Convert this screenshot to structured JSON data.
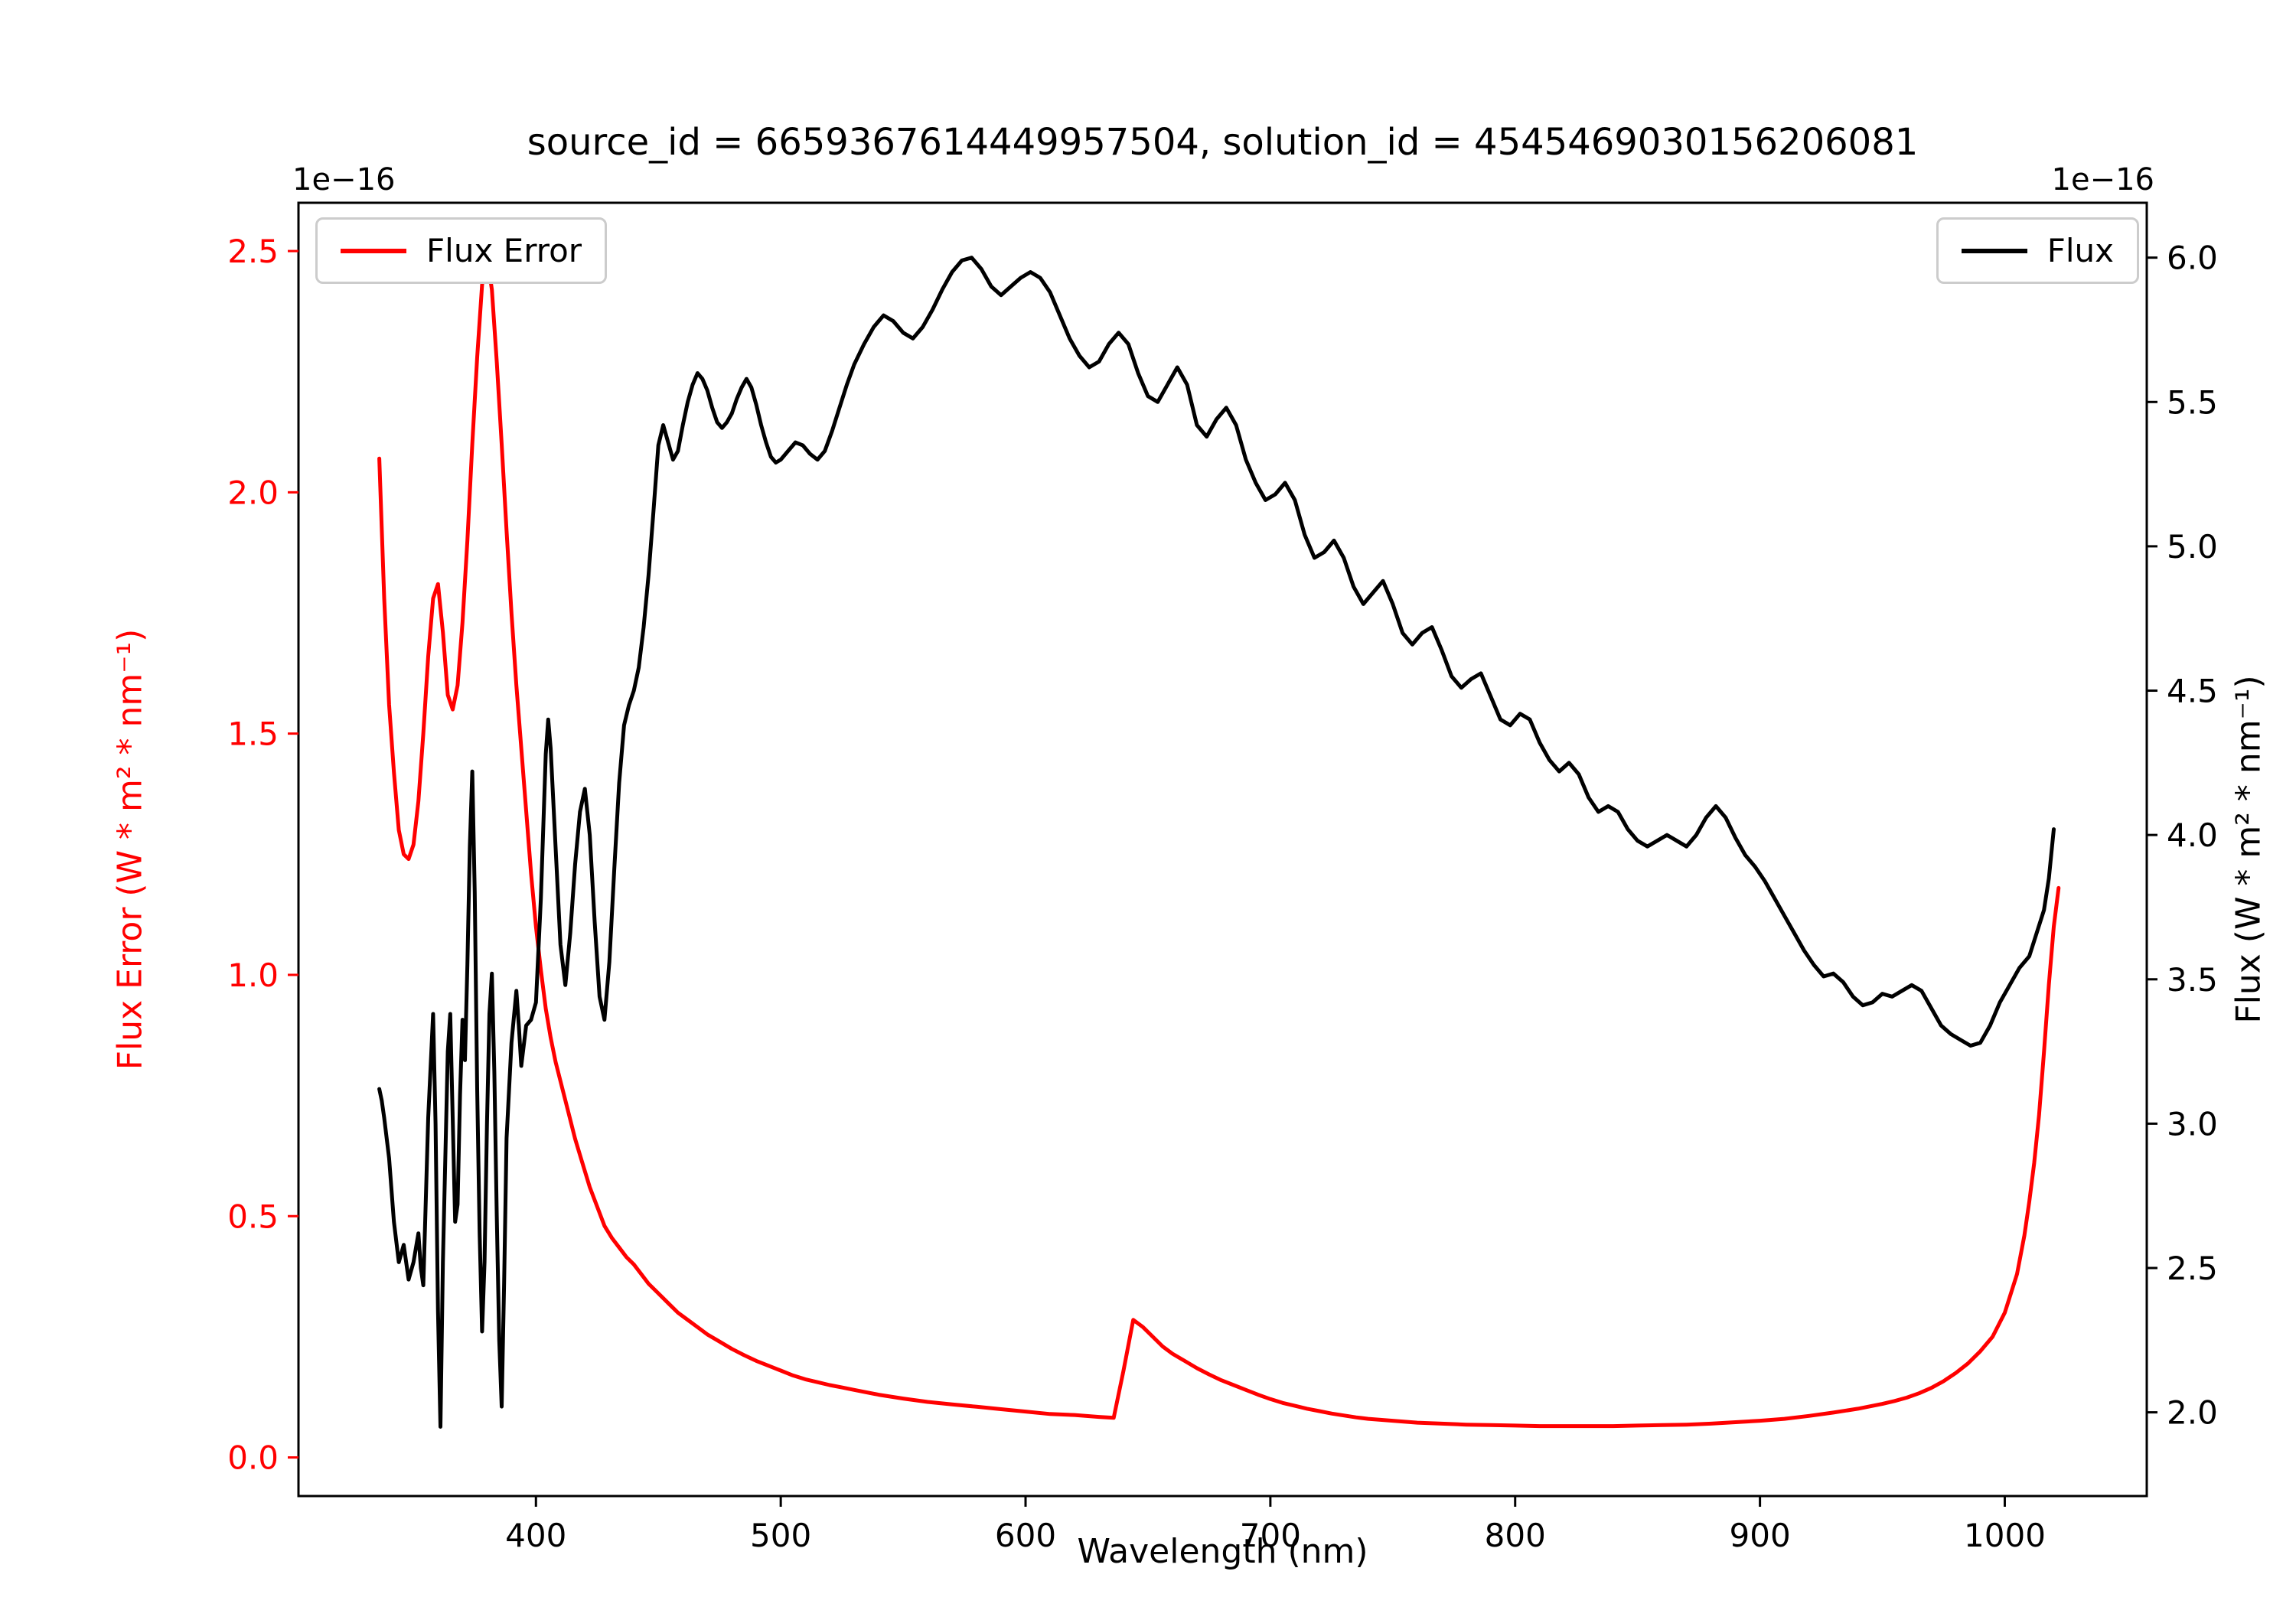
{
  "figure": {
    "background": "#ffffff"
  },
  "chart_data": {
    "type": "line",
    "title": "source_id = 6659367614449957504, solution_id = 4545469030156206081",
    "xlabel": "Wavelength (nm)",
    "grid": false,
    "x_axis": {
      "lim": [
        303,
        1058
      ],
      "ticks": [
        {
          "v": 400,
          "label": "400"
        },
        {
          "v": 500,
          "label": "500"
        },
        {
          "v": 600,
          "label": "600"
        },
        {
          "v": 700,
          "label": "700"
        },
        {
          "v": 800,
          "label": "800"
        },
        {
          "v": 900,
          "label": "900"
        },
        {
          "v": 1000,
          "label": "1000"
        }
      ]
    },
    "left_axis": {
      "label": "Flux Error (W * m² * nm⁻¹)",
      "offset_text": "1e−16",
      "color": "#ff0000",
      "lim": [
        -0.08,
        2.6
      ],
      "ticks": [
        {
          "v": 0.0,
          "label": "0.0"
        },
        {
          "v": 0.5,
          "label": "0.5"
        },
        {
          "v": 1.0,
          "label": "1.0"
        },
        {
          "v": 1.5,
          "label": "1.5"
        },
        {
          "v": 2.0,
          "label": "2.0"
        },
        {
          "v": 2.5,
          "label": "2.5"
        }
      ]
    },
    "right_axis": {
      "label": "Flux (W * m² * nm⁻¹)",
      "offset_text": "1e−16",
      "color": "#000000",
      "lim": [
        1.71,
        6.19
      ],
      "ticks": [
        {
          "v": 2.0,
          "label": "2.0"
        },
        {
          "v": 2.5,
          "label": "2.5"
        },
        {
          "v": 3.0,
          "label": "3.0"
        },
        {
          "v": 3.5,
          "label": "3.5"
        },
        {
          "v": 4.0,
          "label": "4.0"
        },
        {
          "v": 4.5,
          "label": "4.5"
        },
        {
          "v": 5.0,
          "label": "5.0"
        },
        {
          "v": 5.5,
          "label": "5.5"
        },
        {
          "v": 6.0,
          "label": "6.0"
        }
      ]
    },
    "legend_left": {
      "label": "Flux Error",
      "color": "#ff0000"
    },
    "legend_right": {
      "label": "Flux",
      "color": "#000000"
    },
    "series": [
      {
        "name": "Flux Error",
        "axis": "left",
        "color": "#ff0000",
        "x": [
          336,
          338,
          340,
          342,
          344,
          346,
          348,
          350,
          352,
          354,
          356,
          358,
          360,
          362,
          364,
          366,
          368,
          370,
          372,
          374,
          376,
          378,
          380,
          382,
          384,
          386,
          388,
          390,
          392,
          394,
          396,
          398,
          400,
          402,
          404,
          406,
          408,
          410,
          413,
          416,
          419,
          422,
          425,
          428,
          431,
          434,
          437,
          440,
          443,
          446,
          450,
          454,
          458,
          462,
          466,
          470,
          475,
          480,
          485,
          490,
          495,
          500,
          505,
          510,
          515,
          520,
          525,
          530,
          540,
          550,
          560,
          570,
          580,
          590,
          600,
          610,
          620,
          630,
          636,
          640,
          644,
          648,
          652,
          656,
          660,
          665,
          670,
          675,
          680,
          685,
          690,
          695,
          700,
          705,
          710,
          715,
          720,
          725,
          730,
          735,
          740,
          745,
          750,
          760,
          770,
          780,
          790,
          800,
          810,
          820,
          830,
          840,
          850,
          860,
          870,
          880,
          890,
          900,
          910,
          920,
          930,
          940,
          950,
          955,
          960,
          965,
          970,
          975,
          980,
          985,
          990,
          995,
          1000,
          1005,
          1008,
          1010,
          1012,
          1014,
          1016,
          1018,
          1020,
          1022
        ],
        "y": [
          2.07,
          1.78,
          1.56,
          1.42,
          1.3,
          1.25,
          1.24,
          1.27,
          1.36,
          1.5,
          1.66,
          1.78,
          1.81,
          1.71,
          1.58,
          1.55,
          1.6,
          1.73,
          1.9,
          2.1,
          2.28,
          2.43,
          2.49,
          2.42,
          2.27,
          2.1,
          1.92,
          1.75,
          1.6,
          1.47,
          1.34,
          1.21,
          1.1,
          1.01,
          0.93,
          0.87,
          0.82,
          0.78,
          0.72,
          0.66,
          0.61,
          0.56,
          0.52,
          0.48,
          0.455,
          0.435,
          0.415,
          0.4,
          0.38,
          0.36,
          0.34,
          0.32,
          0.3,
          0.285,
          0.27,
          0.255,
          0.24,
          0.225,
          0.212,
          0.2,
          0.19,
          0.18,
          0.17,
          0.162,
          0.156,
          0.15,
          0.145,
          0.14,
          0.13,
          0.122,
          0.115,
          0.11,
          0.105,
          0.1,
          0.095,
          0.09,
          0.088,
          0.084,
          0.082,
          0.18,
          0.285,
          0.27,
          0.25,
          0.23,
          0.215,
          0.2,
          0.185,
          0.172,
          0.16,
          0.15,
          0.14,
          0.13,
          0.121,
          0.113,
          0.107,
          0.101,
          0.096,
          0.091,
          0.087,
          0.083,
          0.08,
          0.078,
          0.076,
          0.072,
          0.07,
          0.068,
          0.067,
          0.066,
          0.065,
          0.065,
          0.065,
          0.065,
          0.066,
          0.067,
          0.068,
          0.07,
          0.073,
          0.076,
          0.08,
          0.086,
          0.093,
          0.101,
          0.111,
          0.117,
          0.124,
          0.133,
          0.144,
          0.158,
          0.175,
          0.195,
          0.22,
          0.25,
          0.3,
          0.38,
          0.46,
          0.53,
          0.61,
          0.71,
          0.84,
          0.98,
          1.1,
          1.18
        ]
      },
      {
        "name": "Flux",
        "axis": "right",
        "color": "#000000",
        "x": [
          336,
          337,
          338,
          340,
          342,
          344,
          346,
          348,
          350,
          352,
          353,
          354,
          356,
          358,
          359,
          360,
          361,
          362,
          364,
          365,
          366,
          367,
          368,
          369,
          370,
          371,
          372,
          373,
          374,
          375,
          376,
          377,
          378,
          379,
          380,
          381,
          382,
          383,
          384,
          385,
          386,
          387,
          388,
          390,
          392,
          393,
          394,
          396,
          398,
          400,
          402,
          404,
          405,
          406,
          408,
          410,
          412,
          414,
          416,
          418,
          420,
          422,
          424,
          426,
          428,
          430,
          432,
          434,
          436,
          438,
          440,
          442,
          444,
          446,
          448,
          450,
          452,
          454,
          456,
          458,
          460,
          462,
          464,
          466,
          468,
          470,
          472,
          474,
          476,
          478,
          480,
          482,
          484,
          486,
          488,
          490,
          492,
          494,
          496,
          498,
          500,
          503,
          506,
          509,
          512,
          515,
          518,
          521,
          524,
          527,
          530,
          534,
          538,
          542,
          546,
          550,
          554,
          558,
          562,
          566,
          570,
          574,
          578,
          582,
          586,
          590,
          594,
          598,
          602,
          606,
          610,
          614,
          618,
          622,
          626,
          630,
          634,
          638,
          642,
          646,
          650,
          654,
          658,
          662,
          666,
          670,
          674,
          678,
          682,
          686,
          690,
          694,
          698,
          702,
          706,
          710,
          714,
          718,
          722,
          726,
          730,
          734,
          738,
          742,
          746,
          750,
          754,
          758,
          762,
          766,
          770,
          774,
          778,
          782,
          786,
          790,
          794,
          798,
          802,
          806,
          810,
          814,
          818,
          822,
          826,
          830,
          834,
          838,
          842,
          846,
          850,
          854,
          858,
          862,
          866,
          870,
          874,
          878,
          882,
          886,
          890,
          894,
          898,
          902,
          906,
          910,
          914,
          918,
          922,
          926,
          930,
          934,
          938,
          942,
          946,
          950,
          954,
          958,
          962,
          966,
          970,
          974,
          978,
          982,
          986,
          990,
          994,
          998,
          1002,
          1006,
          1010,
          1013,
          1016,
          1018,
          1020
        ],
        "y": [
          3.12,
          3.08,
          3.02,
          2.88,
          2.66,
          2.52,
          2.58,
          2.46,
          2.52,
          2.62,
          2.5,
          2.44,
          3.02,
          3.38,
          3.0,
          2.35,
          1.95,
          2.52,
          3.25,
          3.38,
          3.02,
          2.66,
          2.72,
          3.1,
          3.36,
          3.22,
          3.55,
          3.96,
          4.22,
          3.8,
          3.12,
          2.62,
          2.28,
          2.52,
          3.0,
          3.38,
          3.52,
          3.18,
          2.68,
          2.25,
          2.02,
          2.45,
          2.95,
          3.28,
          3.46,
          3.34,
          3.2,
          3.34,
          3.36,
          3.42,
          3.78,
          4.28,
          4.4,
          4.3,
          3.96,
          3.62,
          3.48,
          3.66,
          3.9,
          4.08,
          4.16,
          4.0,
          3.7,
          3.44,
          3.36,
          3.56,
          3.88,
          4.18,
          4.38,
          4.45,
          4.5,
          4.58,
          4.72,
          4.9,
          5.12,
          5.35,
          5.42,
          5.36,
          5.3,
          5.33,
          5.42,
          5.5,
          5.56,
          5.6,
          5.58,
          5.54,
          5.48,
          5.43,
          5.41,
          5.43,
          5.46,
          5.51,
          5.55,
          5.58,
          5.55,
          5.49,
          5.42,
          5.36,
          5.31,
          5.29,
          5.3,
          5.33,
          5.36,
          5.35,
          5.32,
          5.3,
          5.33,
          5.4,
          5.48,
          5.56,
          5.63,
          5.7,
          5.76,
          5.8,
          5.78,
          5.74,
          5.72,
          5.76,
          5.82,
          5.89,
          5.95,
          5.99,
          6.0,
          5.96,
          5.9,
          5.87,
          5.9,
          5.93,
          5.95,
          5.93,
          5.88,
          5.8,
          5.72,
          5.66,
          5.62,
          5.64,
          5.7,
          5.74,
          5.7,
          5.6,
          5.52,
          5.5,
          5.56,
          5.62,
          5.56,
          5.42,
          5.38,
          5.44,
          5.48,
          5.42,
          5.3,
          5.22,
          5.16,
          5.18,
          5.22,
          5.16,
          5.04,
          4.96,
          4.98,
          5.02,
          4.96,
          4.86,
          4.8,
          4.84,
          4.88,
          4.8,
          4.7,
          4.66,
          4.7,
          4.72,
          4.64,
          4.55,
          4.51,
          4.54,
          4.56,
          4.48,
          4.4,
          4.38,
          4.42,
          4.4,
          4.32,
          4.26,
          4.22,
          4.25,
          4.21,
          4.13,
          4.08,
          4.1,
          4.08,
          4.02,
          3.98,
          3.96,
          3.98,
          4.0,
          3.98,
          3.96,
          4.0,
          4.06,
          4.1,
          4.06,
          3.99,
          3.93,
          3.89,
          3.84,
          3.78,
          3.72,
          3.66,
          3.6,
          3.55,
          3.51,
          3.52,
          3.49,
          3.44,
          3.41,
          3.42,
          3.45,
          3.44,
          3.46,
          3.48,
          3.46,
          3.4,
          3.34,
          3.31,
          3.29,
          3.27,
          3.28,
          3.34,
          3.42,
          3.48,
          3.54,
          3.58,
          3.66,
          3.74,
          3.85,
          4.02
        ]
      }
    ]
  }
}
